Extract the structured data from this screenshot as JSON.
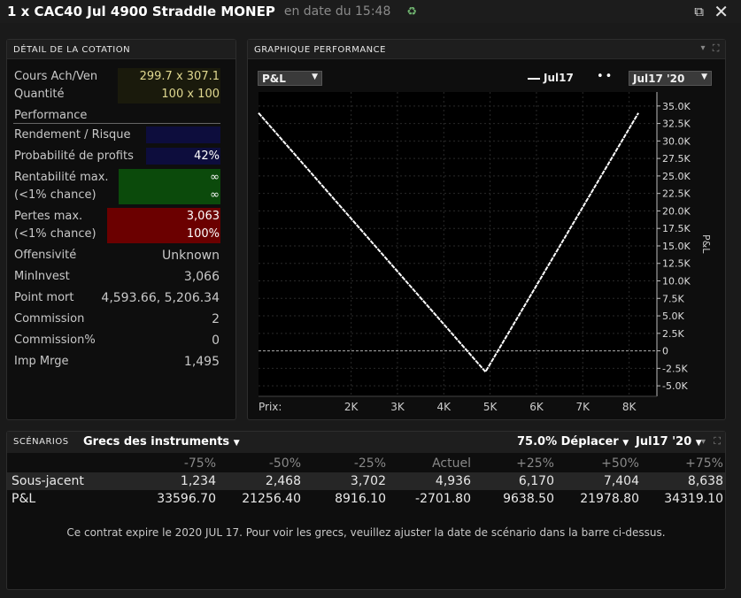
{
  "window": {
    "title": "1 x CAC40 Jul 4900 Straddle MONEP",
    "subtitle": "en date du 15:48"
  },
  "detail": {
    "header": "DÉTAIL DE LA COTATION",
    "bid_ask_label": "Cours Ach/Ven",
    "bid": "299.7",
    "ask_sep": "x",
    "ask": "307.1",
    "qty_label": "Quantité",
    "qty": "100 x 100",
    "performance_label": "Performance",
    "rendement_label": "Rendement / Risque",
    "proba_label": "Probabilité de profits",
    "proba_value": "42%",
    "rent_label": "Rentabilité max.",
    "rent_value": "∞",
    "rent_chance_label": "(<1% chance)",
    "rent_chance_value": "∞",
    "pertes_label": "Pertes max.",
    "pertes_value": "3,063",
    "pertes_chance_label": "(<1% chance)",
    "pertes_chance_value": "100%",
    "offensivite_label": "Offensivité",
    "offensivite_value": "Unknown",
    "mininvest_label": "MinInvest",
    "mininvest_value": "3,066",
    "pointmort_label": "Point mort",
    "pointmort_value": "4,593.66, 5,206.34",
    "commission_label": "Commission",
    "commission_value": "2",
    "commissionpct_label": "Commission%",
    "commissionpct_value": "0",
    "impmrge_label": "Imp Mrge",
    "impmrge_value": "1,495",
    "colors": {
      "green": "#0b4a0b",
      "red": "#6b0000",
      "navy": "#0d0d3d"
    }
  },
  "graph": {
    "header": "GRAPHIQUE PERFORMANCE",
    "metric_select": "P&L",
    "legend_line": "Jul17",
    "date_select": "Jul17 '20",
    "x_axis_label": "Prix:",
    "y_axis_label": "P&L"
  },
  "chart_data": {
    "type": "line",
    "x": [
      0,
      4900,
      8200
    ],
    "series": [
      {
        "name": "Jul17",
        "values": [
          34000,
          -3000,
          34000
        ],
        "color": "#ffffff"
      }
    ],
    "xlim": [
      0,
      8600
    ],
    "ylim": [
      -6500,
      37000
    ],
    "x_ticks": [
      2000,
      3000,
      4000,
      5000,
      6000,
      7000,
      8000
    ],
    "x_tick_labels": [
      "2K",
      "3K",
      "4K",
      "5K",
      "6K",
      "7K",
      "8K"
    ],
    "y_ticks": [
      35000,
      32500,
      30000,
      27500,
      25000,
      22500,
      20000,
      17500,
      15000,
      12500,
      10000,
      7500,
      5000,
      2500,
      0,
      -2500,
      -5000
    ],
    "y_tick_labels": [
      "35.0K",
      "32.5K",
      "30.0K",
      "27.5K",
      "25.0K",
      "22.5K",
      "20.0K",
      "17.5K",
      "15.0K",
      "12.5K",
      "10.0K",
      "7.5K",
      "5.0K",
      "2.5K",
      "0",
      "-2.5K",
      "-5.0K"
    ],
    "grid": true
  },
  "scenarios": {
    "header": "SCÉNARIOS",
    "greeks_select": "Grecs des instruments",
    "shift_select": "75.0% Déplacer",
    "date_select": "Jul17 '20",
    "columns": [
      "-75%",
      "-50%",
      "-25%",
      "Actuel",
      "+25%",
      "+50%",
      "+75%"
    ],
    "rows": [
      {
        "label": "Sous-jacent",
        "values": [
          "1,234",
          "2,468",
          "3,702",
          "4,936",
          "6,170",
          "7,404",
          "8,638"
        ]
      },
      {
        "label": "P&L",
        "values": [
          "33596.70",
          "21256.40",
          "8916.10",
          "-2701.80",
          "9638.50",
          "21978.80",
          "34319.10"
        ]
      }
    ],
    "note": "Ce contrat expire le 2020 JUL 17. Pour voir les grecs, veuillez ajuster la date de scénario dans la barre ci-dessus."
  }
}
